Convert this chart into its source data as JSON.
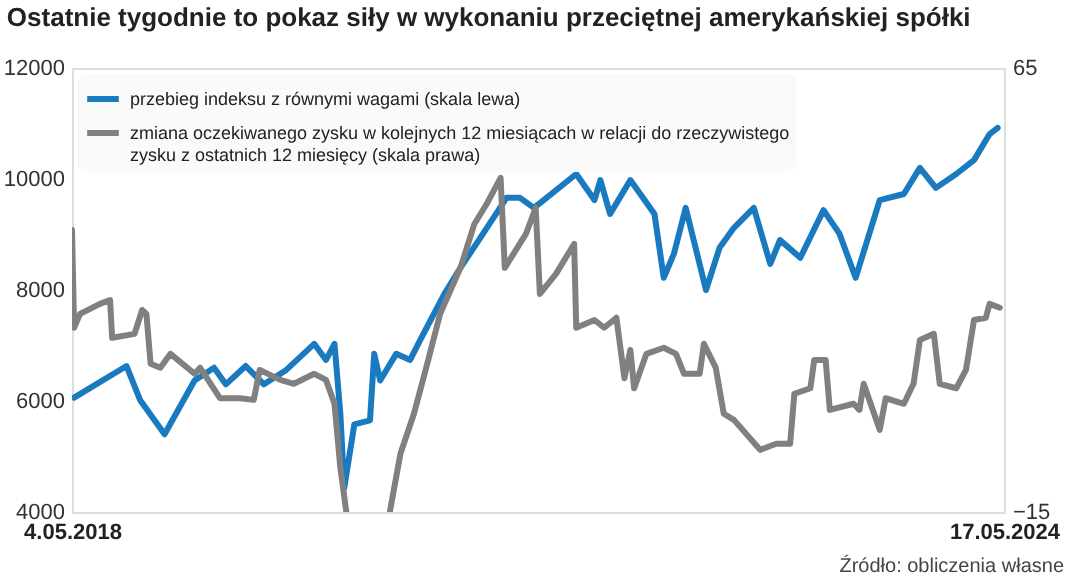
{
  "chart_data": {
    "type": "line",
    "title": "Ostatnie tygodnie to pokaz siły w wykonaniu przeciętnej amerykańskiej spółki",
    "annotations": [
      "Źródło: obliczenia własne"
    ],
    "xlim": [
      "2018-05-04",
      "2024-05-17"
    ],
    "xticks": [
      {
        "value": "2018-05-04",
        "label": "4.05.2018"
      },
      {
        "value": "2024-05-17",
        "label": "17.05.2024"
      }
    ],
    "ylim": [
      4000,
      12000
    ],
    "yticks": [
      4000,
      6000,
      8000,
      10000,
      12000
    ],
    "y2lim": [
      -15,
      65
    ],
    "y2ticks": [
      -15,
      65
    ],
    "grid": false,
    "legend": "top",
    "series": [
      {
        "name": "przebieg indeksu z równymi wagami (skala lewa)",
        "color": "#1a7ac0",
        "x": [
          "2018-05-09",
          "2018-09-10",
          "2018-10-12",
          "2018-12-09",
          "2019-02-18",
          "2019-04-05",
          "2019-05-03",
          "2019-06-19",
          "2019-08-01",
          "2019-09-23",
          "2019-11-28",
          "2019-12-26",
          "2020-01-15",
          "2020-01-29",
          "2020-02-07",
          "2020-03-02",
          "2020-04-08",
          "2020-04-18",
          "2020-05-02",
          "2020-06-09",
          "2020-07-12",
          "2020-08-05",
          "2020-10-01",
          "2020-11-08",
          "2020-12-25",
          "2021-02-25",
          "2021-03-29",
          "2021-05-01",
          "2021-08-09",
          "2021-09-21",
          "2021-10-05",
          "2021-10-28",
          "2021-12-15",
          "2022-02-10",
          "2022-03-04",
          "2022-03-28",
          "2022-04-25",
          "2022-06-12",
          "2022-07-14",
          "2022-08-17",
          "2022-10-03",
          "2022-11-11",
          "2022-12-04",
          "2023-01-21",
          "2023-03-17",
          "2023-04-24",
          "2023-06-01",
          "2023-07-28",
          "2023-09-23",
          "2023-10-31",
          "2023-12-08",
          "2024-01-25",
          "2024-03-07",
          "2024-04-13",
          "2024-05-02"
        ],
        "values": [
          6060,
          6630,
          6020,
          5400,
          6370,
          6600,
          6300,
          6630,
          6300,
          6560,
          7030,
          6740,
          7030,
          5760,
          4430,
          5580,
          5650,
          6850,
          6370,
          6850,
          6740,
          7100,
          7930,
          8400,
          8940,
          9660,
          9660,
          9480,
          10090,
          9620,
          9980,
          9370,
          9980,
          9370,
          8220,
          8650,
          9480,
          8000,
          8760,
          9120,
          9480,
          8470,
          8900,
          8580,
          9440,
          9010,
          8220,
          9620,
          9730,
          10200,
          9840,
          10090,
          10340,
          10810,
          10920
        ]
      },
      {
        "name": "zmiana oczekiwanego zysku w kolejnych 12 miesiącach w relacji do rzeczywistego zysku z ostatnich 12 miesięcy (skala prawa)",
        "color": "#808080",
        "axis": "y2",
        "x": [
          "2018-05-04",
          "2018-05-09",
          "2018-05-23",
          "2018-07-09",
          "2018-08-02",
          "2018-08-07",
          "2018-09-29",
          "2018-10-17",
          "2018-10-27",
          "2018-11-06",
          "2018-11-29",
          "2018-12-23",
          "2019-02-18",
          "2019-03-03",
          "2019-04-19",
          "2019-06-05",
          "2019-07-08",
          "2019-07-22",
          "2019-09-09",
          "2019-10-11",
          "2019-11-28",
          "2019-12-26",
          "2020-01-15",
          "2020-01-29",
          "2020-02-12",
          "2020-04-04",
          "2020-05-25",
          "2020-06-19",
          "2020-07-21",
          "2020-08-19",
          "2020-09-21",
          "2020-11-08",
          "2020-12-11",
          "2021-01-09",
          "2021-02-11",
          "2021-02-21",
          "2021-04-12",
          "2021-05-05",
          "2021-05-15",
          "2021-06-22",
          "2021-08-04",
          "2021-08-09",
          "2021-09-21",
          "2021-10-14",
          "2021-11-12",
          "2021-12-01",
          "2021-12-15",
          "2021-12-24",
          "2022-01-22",
          "2022-03-04",
          "2022-04-02",
          "2022-04-21",
          "2022-05-28",
          "2022-06-07",
          "2022-07-05",
          "2022-07-24",
          "2022-08-17",
          "2022-10-18",
          "2022-11-25",
          "2022-12-28",
          "2023-01-07",
          "2023-02-14",
          "2023-02-23",
          "2023-03-22",
          "2023-04-01",
          "2023-05-27",
          "2023-06-10",
          "2023-06-20",
          "2023-07-28",
          "2023-08-11",
          "2023-09-23",
          "2023-10-16",
          "2023-10-31",
          "2023-12-03",
          "2023-12-17",
          "2024-01-25",
          "2024-02-17",
          "2024-03-07",
          "2024-04-04",
          "2024-04-13",
          "2024-05-07"
        ],
        "values": [
          35.8,
          18.2,
          20.7,
          22.5,
          23.2,
          16.4,
          17.1,
          21.4,
          20.7,
          11.7,
          11.0,
          13.5,
          9.9,
          11.0,
          5.5,
          5.5,
          5.2,
          10.6,
          8.8,
          8.1,
          9.9,
          8.8,
          4.5,
          -7.1,
          -15,
          null,
          -15,
          -4.5,
          2.7,
          11,
          20.7,
          29,
          36.9,
          40.5,
          45.2,
          29,
          35.1,
          39.8,
          24.3,
          27.9,
          33.3,
          18.2,
          19.6,
          18.2,
          20,
          9.1,
          14.2,
          7.3,
          13.5,
          14.6,
          13.5,
          9.9,
          9.9,
          15.3,
          11,
          2.7,
          1.6,
          -3.8,
          -2.7,
          -2.7,
          6.3,
          7.3,
          12.4,
          12.4,
          3.4,
          4.5,
          3.4,
          8.1,
          -0.2,
          5.5,
          4.5,
          8.1,
          16,
          17.1,
          8.1,
          7.3,
          10.6,
          19.6,
          20,
          22.5,
          21.8
        ]
      }
    ]
  }
}
